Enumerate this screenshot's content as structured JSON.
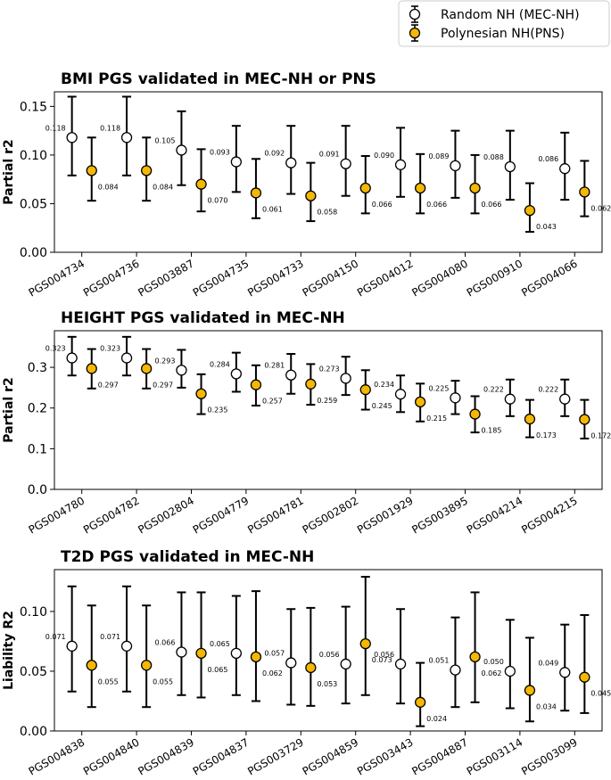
{
  "colors": {
    "random": "#ffffff",
    "polynesian": "#f5b800",
    "stroke": "#000000"
  },
  "legend": {
    "entries": [
      "Random NH (MEC-NH)",
      "Polynesian NH(PNS)"
    ]
  },
  "chart_data": [
    {
      "type": "errorbar",
      "title": "BMI PGS validated in MEC-NH or PNS",
      "ylabel": "Partial r2",
      "ylim": [
        0,
        0.165
      ],
      "yticks": [
        0.0,
        0.05,
        0.1,
        0.15
      ],
      "ytick_labels": [
        "0.00",
        "0.05",
        "0.10",
        "0.15"
      ],
      "categories": [
        "PGS004734",
        "PGS004736",
        "PGS003887",
        "PGS004735",
        "PGS004733",
        "PGS004150",
        "PGS004012",
        "PGS004080",
        "PGS000910",
        "PGS004066"
      ],
      "series": [
        {
          "name": "Random NH (MEC-NH)",
          "values": [
            0.118,
            0.118,
            0.105,
            0.093,
            0.092,
            0.091,
            0.09,
            0.089,
            0.088,
            0.086
          ],
          "labels": [
            "0.118",
            "0.118",
            "0.105",
            "0.093",
            "0.092",
            "0.091",
            "0.090",
            "0.089",
            "0.088",
            "0.086"
          ],
          "lower": [
            0.079,
            0.079,
            0.069,
            0.062,
            0.06,
            0.058,
            0.057,
            0.056,
            0.054,
            0.054
          ],
          "upper": [
            0.16,
            0.16,
            0.145,
            0.13,
            0.13,
            0.13,
            0.128,
            0.125,
            0.125,
            0.123
          ]
        },
        {
          "name": "Polynesian NH(PNS)",
          "values": [
            0.084,
            0.084,
            0.07,
            0.061,
            0.058,
            0.066,
            0.066,
            0.066,
            0.043,
            0.062
          ],
          "labels": [
            "0.084",
            "0.084",
            "0.070",
            "0.061",
            "0.058",
            "0.066",
            "0.066",
            "0.066",
            "0.043",
            "0.062"
          ],
          "lower": [
            0.053,
            0.053,
            0.042,
            0.035,
            0.032,
            0.04,
            0.04,
            0.04,
            0.021,
            0.037
          ],
          "upper": [
            0.118,
            0.118,
            0.106,
            0.096,
            0.092,
            0.099,
            0.101,
            0.1,
            0.071,
            0.094
          ]
        }
      ]
    },
    {
      "type": "errorbar",
      "title": "HEIGHT PGS validated in MEC-NH",
      "ylabel": "Partial r2",
      "ylim": [
        0,
        0.39
      ],
      "yticks": [
        0.0,
        0.1,
        0.2,
        0.3
      ],
      "ytick_labels": [
        "0.0",
        "0.1",
        "0.2",
        "0.3"
      ],
      "categories": [
        "PGS004780",
        "PGS004782",
        "PGS002804",
        "PGS004779",
        "PGS004781",
        "PGS002802",
        "PGS001929",
        "PGS003895",
        "PGS004214",
        "PGS004215"
      ],
      "series": [
        {
          "name": "Random NH (MEC-NH)",
          "values": [
            0.323,
            0.323,
            0.293,
            0.284,
            0.281,
            0.273,
            0.234,
            0.225,
            0.222,
            0.222
          ],
          "labels": [
            "0.323",
            "0.323",
            "0.293",
            "0.284",
            "0.281",
            "0.273",
            "0.234",
            "0.225",
            "0.222",
            "0.222"
          ],
          "lower": [
            0.28,
            0.28,
            0.25,
            0.24,
            0.235,
            0.232,
            0.19,
            0.185,
            0.18,
            0.18
          ],
          "upper": [
            0.375,
            0.375,
            0.343,
            0.336,
            0.333,
            0.326,
            0.28,
            0.267,
            0.27,
            0.27
          ]
        },
        {
          "name": "Polynesian NH(PNS)",
          "values": [
            0.297,
            0.297,
            0.235,
            0.257,
            0.259,
            0.245,
            0.215,
            0.185,
            0.173,
            0.172
          ],
          "labels": [
            "0.297",
            "0.297",
            "0.235",
            "0.257",
            "0.259",
            "0.245",
            "0.215",
            "0.185",
            "0.173",
            "0.172"
          ],
          "lower": [
            0.248,
            0.248,
            0.185,
            0.206,
            0.208,
            0.196,
            0.167,
            0.14,
            0.128,
            0.125
          ],
          "upper": [
            0.345,
            0.345,
            0.283,
            0.305,
            0.308,
            0.293,
            0.26,
            0.229,
            0.22,
            0.22
          ]
        }
      ]
    },
    {
      "type": "errorbar",
      "title": "T2D PGS validated in MEC-NH",
      "ylabel": "Liability R2",
      "ylim": [
        0,
        0.135
      ],
      "yticks": [
        0.0,
        0.05,
        0.1
      ],
      "ytick_labels": [
        "0.00",
        "0.05",
        "0.10"
      ],
      "categories": [
        "PGS004838",
        "PGS004840",
        "PGS004839",
        "PGS004837",
        "PGS003729",
        "PGS004859",
        "PGS003443",
        "PGS004887",
        "PGS003114",
        "PGS003099"
      ],
      "series": [
        {
          "name": "Random NH (MEC-NH)",
          "values": [
            0.071,
            0.071,
            0.066,
            0.065,
            0.057,
            0.056,
            0.056,
            0.051,
            0.05,
            0.049
          ],
          "labels": [
            "0.071",
            "0.071",
            "0.066",
            "0.065",
            "0.057",
            "0.056",
            "0.056",
            "0.051",
            "0.050",
            "0.049"
          ],
          "lower": [
            0.033,
            0.033,
            0.03,
            0.03,
            0.022,
            0.023,
            0.023,
            0.02,
            0.019,
            0.017
          ],
          "upper": [
            0.121,
            0.121,
            0.116,
            0.113,
            0.102,
            0.104,
            0.102,
            0.095,
            0.093,
            0.089
          ]
        },
        {
          "name": "Polynesian NH(PNS)",
          "values": [
            0.055,
            0.055,
            0.065,
            0.062,
            0.053,
            0.073,
            0.024,
            0.062,
            0.034,
            0.045
          ],
          "labels": [
            "0.055",
            "0.055",
            "0.065",
            "0.062",
            "0.053",
            "0.073",
            "0.024",
            "0.062",
            "0.034",
            "0.045"
          ],
          "lower": [
            0.02,
            0.02,
            0.028,
            0.025,
            0.021,
            0.03,
            0.004,
            0.024,
            0.008,
            0.015
          ],
          "upper": [
            0.105,
            0.105,
            0.116,
            0.117,
            0.103,
            0.129,
            0.057,
            0.116,
            0.078,
            0.097
          ]
        }
      ]
    }
  ]
}
